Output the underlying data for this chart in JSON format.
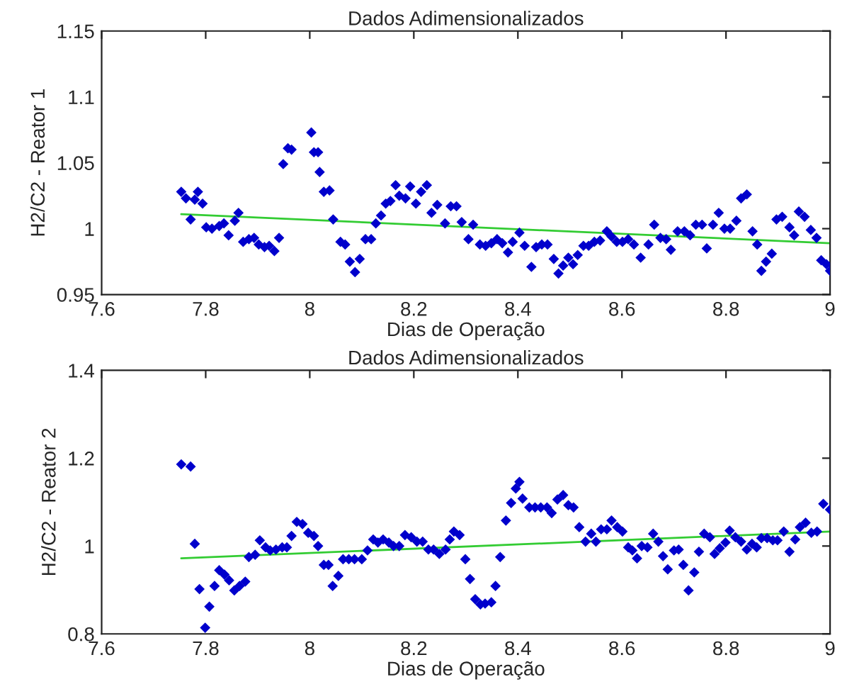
{
  "chart_data": [
    {
      "type": "scatter",
      "title": "Dados Adimensionalizados",
      "xlabel": "Dias de Operação",
      "ylabel": "H2/C2 - Reator 1",
      "xlim": [
        7.6,
        9
      ],
      "xticks": [
        7.6,
        7.8,
        8,
        8.2,
        8.4,
        8.6,
        8.8,
        9
      ],
      "ylim": [
        0.95,
        1.15
      ],
      "yticks": [
        0.95,
        1,
        1.05,
        1.1,
        1.15
      ],
      "grid": false,
      "series": [
        {
          "marker": "diamond",
          "color": "#0000cc",
          "x": [
            7.753,
            7.762,
            7.771,
            7.779,
            7.785,
            7.794,
            7.801,
            7.812,
            7.826,
            7.835,
            7.844,
            7.856,
            7.863,
            7.872,
            7.883,
            7.893,
            7.902,
            7.913,
            7.922,
            7.932,
            7.941,
            7.949,
            7.958,
            7.965,
            8.003,
            8.008,
            8.016,
            8.019,
            8.027,
            8.038,
            8.045,
            8.059,
            8.068,
            8.077,
            8.087,
            8.096,
            8.107,
            8.118,
            8.127,
            8.137,
            8.146,
            8.155,
            8.165,
            8.172,
            8.184,
            8.193,
            8.204,
            8.214,
            8.225,
            8.234,
            8.245,
            8.26,
            8.271,
            8.282,
            8.292,
            8.305,
            8.314,
            8.327,
            8.338,
            8.349,
            8.36,
            8.37,
            8.381,
            8.39,
            8.403,
            8.413,
            8.426,
            8.435,
            8.446,
            8.457,
            8.469,
            8.478,
            8.487,
            8.497,
            8.506,
            8.515,
            8.526,
            8.536,
            8.547,
            8.558,
            8.571,
            8.58,
            8.59,
            8.601,
            8.612,
            8.623,
            8.636,
            8.651,
            8.662,
            8.674,
            8.685,
            8.694,
            8.707,
            8.72,
            8.731,
            8.742,
            8.754,
            8.763,
            8.775,
            8.786,
            8.797,
            8.808,
            8.82,
            8.829,
            8.84,
            8.851,
            8.86,
            8.868,
            8.877,
            8.888,
            8.897,
            8.908,
            8.922,
            8.931,
            8.94,
            8.951,
            8.963,
            8.974,
            8.983,
            8.993,
            9.0
          ],
          "values": [
            1.028,
            1.023,
            1.007,
            1.022,
            1.028,
            1.019,
            1.001,
            1.0,
            1.002,
            1.004,
            0.995,
            1.006,
            1.012,
            0.99,
            0.992,
            0.993,
            0.988,
            0.986,
            0.987,
            0.983,
            0.993,
            1.049,
            1.061,
            1.06,
            1.073,
            1.058,
            1.058,
            1.043,
            1.028,
            1.029,
            1.007,
            0.99,
            0.988,
            0.975,
            0.967,
            0.977,
            0.992,
            0.992,
            1.004,
            1.01,
            1.019,
            1.021,
            1.033,
            1.025,
            1.023,
            1.032,
            1.019,
            1.028,
            1.033,
            1.012,
            1.018,
            1.004,
            1.017,
            1.017,
            1.005,
            0.992,
            1.003,
            0.988,
            0.987,
            0.989,
            0.992,
            0.989,
            0.982,
            0.99,
            0.997,
            0.987,
            0.971,
            0.986,
            0.988,
            0.988,
            0.977,
            0.966,
            0.972,
            0.978,
            0.973,
            0.98,
            0.987,
            0.987,
            0.99,
            0.991,
            0.998,
            0.994,
            0.99,
            0.99,
            0.992,
            0.988,
            0.978,
            0.988,
            1.003,
            0.993,
            0.992,
            0.984,
            0.998,
            0.998,
            0.995,
            1.003,
            1.003,
            0.985,
            1.003,
            1.012,
            1.0,
            1.0,
            1.006,
            1.023,
            1.026,
            0.998,
            0.988,
            0.968,
            0.975,
            0.981,
            1.007,
            1.009,
            1.001,
            0.995,
            1.013,
            1.009,
            0.999,
            0.993,
            0.976,
            0.973,
            0.968
          ]
        },
        {
          "type": "line",
          "color": "#33cc33",
          "x": [
            7.753,
            9.0
          ],
          "values": [
            1.011,
            0.989
          ]
        }
      ]
    },
    {
      "type": "scatter",
      "title": "Dados Adimensionalizados",
      "xlabel": "Dias de Operação",
      "ylabel": "H2/C2 - Reator 2",
      "xlim": [
        7.6,
        9
      ],
      "xticks": [
        7.6,
        7.8,
        8,
        8.2,
        8.4,
        8.6,
        8.8,
        9
      ],
      "ylim": [
        0.8,
        1.4
      ],
      "yticks": [
        0.8,
        1,
        1.2,
        1.4
      ],
      "grid": false,
      "series": [
        {
          "marker": "diamond",
          "color": "#0000cc",
          "x": [
            7.753,
            7.771,
            7.779,
            7.788,
            7.799,
            7.807,
            7.817,
            7.826,
            7.836,
            7.845,
            7.855,
            7.865,
            7.876,
            7.883,
            7.895,
            7.904,
            7.915,
            7.924,
            7.935,
            7.947,
            7.956,
            7.965,
            7.975,
            7.986,
            7.997,
            8.008,
            8.016,
            8.027,
            8.036,
            8.044,
            8.055,
            8.064,
            8.075,
            8.086,
            8.1,
            8.111,
            8.122,
            8.131,
            8.141,
            8.152,
            8.161,
            8.172,
            8.183,
            8.195,
            8.206,
            8.217,
            8.228,
            8.238,
            8.249,
            8.261,
            8.269,
            8.277,
            8.288,
            8.299,
            8.308,
            8.318,
            8.328,
            8.337,
            8.349,
            8.357,
            8.366,
            8.377,
            8.387,
            8.396,
            8.403,
            8.409,
            8.422,
            8.433,
            8.444,
            8.456,
            8.465,
            8.476,
            8.487,
            8.497,
            8.507,
            8.518,
            8.53,
            8.541,
            8.55,
            8.56,
            8.571,
            8.58,
            8.591,
            8.601,
            8.612,
            8.62,
            8.629,
            8.638,
            8.649,
            8.66,
            8.67,
            8.679,
            8.688,
            8.7,
            8.709,
            8.718,
            8.728,
            8.739,
            8.748,
            8.758,
            8.769,
            8.778,
            8.788,
            8.799,
            8.807,
            8.818,
            8.829,
            8.84,
            8.85,
            8.859,
            8.868,
            8.879,
            8.89,
            8.899,
            8.911,
            8.922,
            8.933,
            8.942,
            8.953,
            8.964,
            8.975,
            8.987,
            9.0
          ],
          "values": [
            1.186,
            1.181,
            1.005,
            0.902,
            0.814,
            0.862,
            0.909,
            0.945,
            0.935,
            0.922,
            0.899,
            0.909,
            0.919,
            0.975,
            0.98,
            1.013,
            0.997,
            0.99,
            0.992,
            0.997,
            0.997,
            1.023,
            1.055,
            1.05,
            1.03,
            1.023,
            1.0,
            0.957,
            0.957,
            0.909,
            0.932,
            0.97,
            0.97,
            0.97,
            0.97,
            0.99,
            1.015,
            1.008,
            1.015,
            1.008,
            1.0,
            1.0,
            1.025,
            1.02,
            1.01,
            1.01,
            0.992,
            0.992,
            0.982,
            0.992,
            1.015,
            1.033,
            1.025,
            0.97,
            0.925,
            0.879,
            0.867,
            0.869,
            0.872,
            0.909,
            0.975,
            1.058,
            1.098,
            1.131,
            1.146,
            1.108,
            1.088,
            1.088,
            1.088,
            1.088,
            1.075,
            1.106,
            1.116,
            1.093,
            1.088,
            1.043,
            1.01,
            1.028,
            1.01,
            1.038,
            1.038,
            1.058,
            1.043,
            1.033,
            0.997,
            0.99,
            0.972,
            1.0,
            0.997,
            1.028,
            1.01,
            0.977,
            0.947,
            0.99,
            0.992,
            0.957,
            0.899,
            0.94,
            0.987,
            1.028,
            1.02,
            0.982,
            0.995,
            1.008,
            1.035,
            1.02,
            1.01,
            0.992,
            1.005,
            0.997,
            1.018,
            1.018,
            1.013,
            1.013,
            1.033,
            0.987,
            1.015,
            1.043,
            1.053,
            1.03,
            1.033,
            1.096,
            1.083
          ]
        },
        {
          "type": "line",
          "color": "#33cc33",
          "x": [
            7.753,
            9.0
          ],
          "values": [
            0.972,
            1.033
          ]
        }
      ]
    }
  ]
}
